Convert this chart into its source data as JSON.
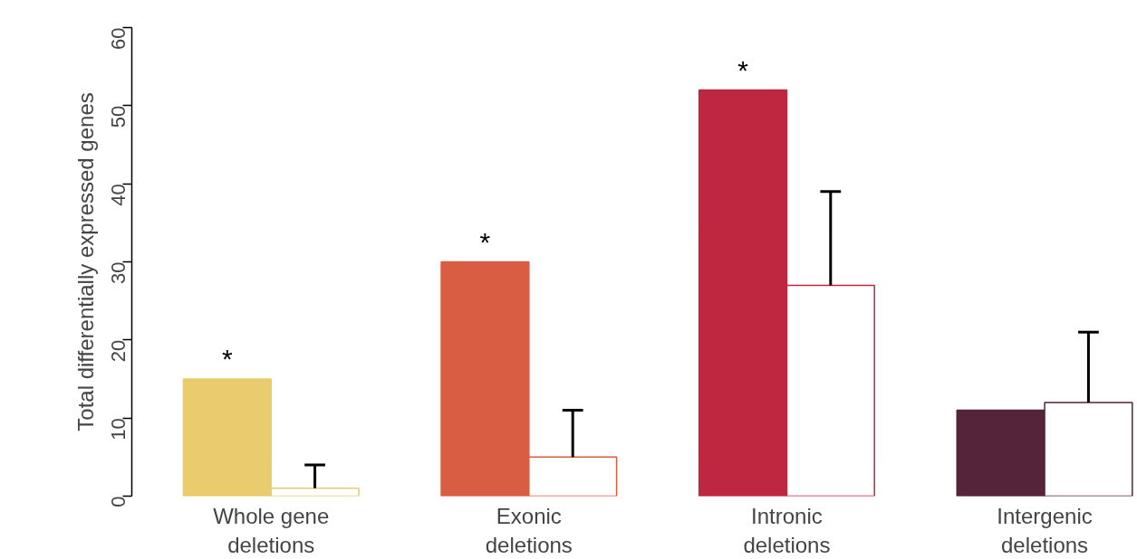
{
  "chart_data": {
    "type": "bar",
    "ylabel": "Total differentially expressed genes",
    "categories": [
      "Whole gene\ndeletions",
      "Exonic\ndeletions",
      "Intronic\ndeletions",
      "Intergenic\ndeletions"
    ],
    "series": [
      {
        "colors": [
          "#e8cc6e",
          "#d95d42",
          "#bf2640",
          "#55233a"
        ],
        "values": [
          15,
          30,
          52,
          11
        ]
      },
      {
        "color": "#ffffff",
        "values": [
          1,
          5,
          27,
          12
        ],
        "errors": [
          [
            1,
            4
          ],
          [
            5,
            11
          ],
          [
            27,
            39
          ],
          [
            12,
            21
          ]
        ]
      }
    ],
    "ylim": [
      0,
      60
    ],
    "yticks": [
      0,
      10,
      20,
      30,
      40,
      50,
      60
    ],
    "grid": false,
    "annotations": [
      {
        "text": "*",
        "x": "Whole gene\ndeletions",
        "y": 15
      },
      {
        "text": "*",
        "x": "Exonic\ndeletions",
        "y": 30
      },
      {
        "text": "*",
        "x": "Intronic\ndeletions",
        "y": 52
      }
    ]
  }
}
